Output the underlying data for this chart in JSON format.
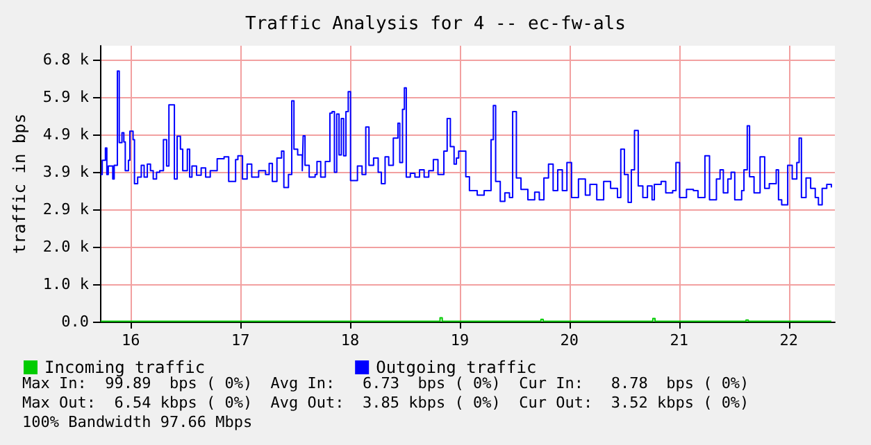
{
  "chart_data": {
    "type": "step",
    "title": "Traffic Analysis for 4 -- ec-fw-als",
    "ylabel": "traffic in bps",
    "xlim": [
      15.72,
      22.42
    ],
    "xticks": [
      16,
      17,
      18,
      19,
      20,
      21,
      22
    ],
    "ylim": [
      0,
      7200
    ],
    "yticks": [
      {
        "value": 0,
        "label": "0.0"
      },
      {
        "value": 977,
        "label": "1.0 k"
      },
      {
        "value": 1953,
        "label": "2.0 k"
      },
      {
        "value": 2930,
        "label": "2.9 k"
      },
      {
        "value": 3906,
        "label": "3.9 k"
      },
      {
        "value": 4883,
        "label": "4.9 k"
      },
      {
        "value": 5859,
        "label": "5.9 k"
      },
      {
        "value": 6836,
        "label": "6.8 k"
      }
    ],
    "grid": true,
    "legend": "bottom left",
    "series": [
      {
        "name": "Incoming traffic",
        "color": "#00cc00",
        "x": [
          15.727,
          16.0,
          16.5,
          17.0,
          17.5,
          18.0,
          18.5,
          18.82,
          18.84,
          19.2,
          19.74,
          19.76,
          20.2,
          20.76,
          20.78,
          21.2,
          21.61,
          21.63,
          22.0,
          22.388
        ],
        "values": [
          10,
          10,
          10,
          10,
          10,
          10,
          10,
          100,
          10,
          10,
          60,
          10,
          10,
          80,
          10,
          10,
          40,
          10,
          10,
          10
        ]
      },
      {
        "name": "Outgoing traffic",
        "color": "#0000ff",
        "x": [
          15.727,
          15.74,
          15.769,
          15.782,
          15.795,
          15.836,
          15.849,
          15.878,
          15.895,
          15.92,
          15.937,
          15.95,
          15.979,
          15.992,
          16.021,
          16.034,
          16.063,
          16.096,
          16.122,
          16.151,
          16.18,
          16.205,
          16.235,
          16.264,
          16.298,
          16.327,
          16.348,
          16.382,
          16.398,
          16.423,
          16.453,
          16.474,
          16.516,
          16.537,
          16.558,
          16.6,
          16.642,
          16.683,
          16.725,
          16.788,
          16.851,
          16.893,
          16.956,
          16.977,
          17.019,
          17.061,
          17.103,
          17.166,
          17.229,
          17.262,
          17.291,
          17.333,
          17.375,
          17.396,
          17.438,
          17.468,
          17.488,
          17.522,
          17.564,
          17.572,
          17.589,
          17.627,
          17.681,
          17.698,
          17.732,
          17.774,
          17.816,
          17.836,
          17.857,
          17.878,
          17.899,
          17.92,
          17.941,
          17.962,
          17.983,
          18.004,
          18.046,
          18.067,
          18.109,
          18.143,
          18.172,
          18.214,
          18.256,
          18.285,
          18.319,
          18.352,
          18.394,
          18.436,
          18.453,
          18.478,
          18.495,
          18.512,
          18.549,
          18.591,
          18.633,
          18.675,
          18.717,
          18.759,
          18.801,
          18.855,
          18.885,
          18.914,
          18.948,
          18.969,
          18.99,
          19.055,
          19.088,
          19.159,
          19.222,
          19.285,
          19.306,
          19.327,
          19.369,
          19.411,
          19.453,
          19.482,
          19.516,
          19.558,
          19.621,
          19.683,
          19.725,
          19.767,
          19.809,
          19.851,
          19.893,
          19.935,
          19.977,
          20.019,
          20.082,
          20.145,
          20.187,
          20.249,
          20.312,
          20.375,
          20.438,
          20.468,
          20.501,
          20.535,
          20.564,
          20.593,
          20.627,
          20.669,
          20.711,
          20.753,
          20.774,
          20.836,
          20.878,
          20.941,
          20.971,
          21.004,
          21.067,
          21.13,
          21.172,
          21.235,
          21.277,
          21.34,
          21.373,
          21.403,
          21.444,
          21.474,
          21.507,
          21.57,
          21.591,
          21.621,
          21.642,
          21.683,
          21.738,
          21.78,
          21.822,
          21.885,
          21.906,
          21.935,
          21.99,
          22.031,
          22.073,
          22.094,
          22.115,
          22.157,
          22.199,
          22.241,
          22.27,
          22.304,
          22.346,
          22.388
        ],
        "values": [
          3840,
          4210,
          4530,
          3840,
          4060,
          3720,
          4080,
          6540,
          4670,
          4930,
          4690,
          3940,
          4210,
          4970,
          4750,
          3600,
          3770,
          4080,
          3770,
          4110,
          3940,
          3720,
          3900,
          3940,
          4750,
          4060,
          5660,
          5660,
          3720,
          4840,
          4500,
          3940,
          4500,
          3770,
          4060,
          3820,
          4010,
          3770,
          3940,
          4250,
          4300,
          3660,
          4230,
          4330,
          3720,
          4110,
          3770,
          3940,
          3840,
          4130,
          3660,
          4270,
          4450,
          3500,
          3840,
          5760,
          4500,
          4350,
          3940,
          4850,
          4080,
          3770,
          3840,
          4180,
          3770,
          4180,
          5440,
          5480,
          3900,
          5420,
          4350,
          5300,
          4330,
          5480,
          6000,
          3680,
          3680,
          4060,
          3840,
          5080,
          4080,
          4270,
          3900,
          3600,
          4300,
          4080,
          4790,
          5180,
          4150,
          5540,
          6100,
          3770,
          3870,
          3770,
          3960,
          3770,
          3940,
          4230,
          3840,
          4450,
          5300,
          4570,
          4110,
          4270,
          4450,
          3780,
          3420,
          3300,
          3420,
          4750,
          5640,
          3660,
          3140,
          3360,
          3240,
          5480,
          3750,
          3450,
          3180,
          3380,
          3180,
          3750,
          4110,
          3420,
          3960,
          3420,
          4150,
          3240,
          3720,
          3300,
          3580,
          3180,
          3660,
          3480,
          3240,
          4500,
          3840,
          3110,
          3960,
          4990,
          3540,
          3240,
          3540,
          3180,
          3580,
          3660,
          3360,
          3420,
          4150,
          3240,
          3450,
          3420,
          3240,
          4330,
          3180,
          3720,
          3960,
          3360,
          3720,
          3900,
          3180,
          3420,
          3960,
          5110,
          3780,
          3360,
          4300,
          3480,
          3600,
          3960,
          3180,
          3050,
          4080,
          3720,
          4150,
          4790,
          3240,
          3750,
          3480,
          3240,
          3050,
          3480,
          3580,
          3500
        ]
      }
    ],
    "annotations": [
      "Max In:  99.89  bps ( 0%)  Avg In:   6.73  bps ( 0%)  Cur In:   8.78  bps ( 0%)",
      "Max Out:  6.54 kbps ( 0%)  Avg Out:  3.85 kbps ( 0%)  Cur Out:  3.52 kbps ( 0%)",
      "100% Bandwidth 97.66 Mbps"
    ]
  }
}
